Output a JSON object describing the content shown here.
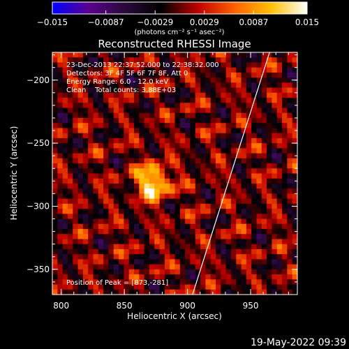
{
  "chart_data": {
    "type": "heatmap",
    "title": "Reconstructed RHESSI Image",
    "xlabel": "Heliocentric X (arcsec)",
    "ylabel": "Heliocentric Y (arcsec)",
    "xlim": [
      793,
      987
    ],
    "ylim": [
      -370,
      -178
    ],
    "x_ticks": [
      800,
      850,
      900,
      950
    ],
    "y_ticks": [
      -200,
      -250,
      -300,
      -350
    ],
    "colorbar": {
      "label": "(photons cm⁻² s⁻¹ asec⁻²)",
      "range": [
        -0.015,
        0.015
      ],
      "tick_values": [
        -0.015,
        -0.0087,
        -0.0029,
        0.0029,
        0.0087,
        0.015
      ],
      "tick_labels": [
        "−0.015",
        "−0.0087",
        "−0.0029",
        "0.0029",
        "0.0087",
        "0.015"
      ],
      "colors": [
        "#0000ff",
        "#5a0090",
        "#2a0a3a",
        "#000000",
        "#c00000",
        "#ff6000",
        "#ffc000",
        "#ffffff"
      ]
    },
    "annotations": [
      "23-Dec-2013 22:37:52.000 to 22:38:32.000",
      "Detectors: 3F 4F 5F 6F 7F 8F, Att 0",
      "Energy Range: 6.0 - 12.0 keV",
      "Clean    Total counts: 3.88E+03"
    ],
    "peak_label": "Position of Peak = [873,-281]",
    "peak": {
      "x": 873,
      "y": -281,
      "value": 0.015
    },
    "limb_line": [
      {
        "x": 904,
        "y": -370
      },
      {
        "x": 965,
        "y": -178
      }
    ]
  },
  "footer": {
    "timestamp": "19-May-2022 09:39"
  }
}
